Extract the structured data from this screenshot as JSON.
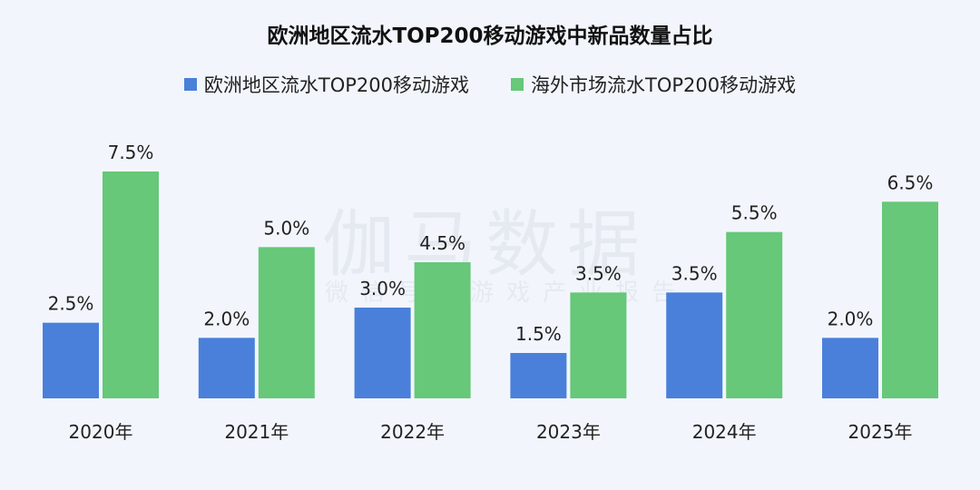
{
  "chart_data": {
    "type": "bar",
    "title": "欧洲地区流水TOP200移动游戏中新品数量占比",
    "categories": [
      "2020年",
      "2021年",
      "2022年",
      "2023年",
      "2024年",
      "2025年"
    ],
    "series": [
      {
        "name": "欧洲地区流水TOP200移动游戏",
        "color": "#4a80da",
        "values": [
          2.5,
          2.0,
          3.0,
          1.5,
          3.5,
          2.0
        ],
        "labels": [
          "2.5%",
          "2.0%",
          "3.0%",
          "1.5%",
          "3.5%",
          "2.0%"
        ]
      },
      {
        "name": "海外市场流水TOP200移动游戏",
        "color": "#66c878",
        "values": [
          7.5,
          5.0,
          4.5,
          3.5,
          5.5,
          6.5
        ],
        "labels": [
          "7.5%",
          "5.0%",
          "4.5%",
          "3.5%",
          "5.5%",
          "6.5%"
        ]
      }
    ],
    "ylim": [
      0,
      8
    ],
    "grid": false,
    "legend_position": "top"
  },
  "watermark": {
    "main": "伽马数据",
    "sub": "微信号：游戏产业报告"
  }
}
